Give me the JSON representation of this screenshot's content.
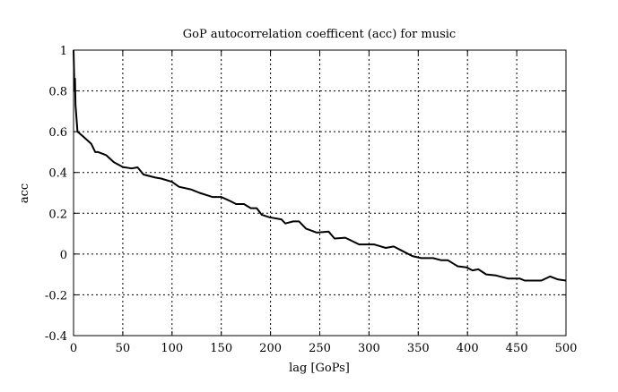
{
  "chart_data": {
    "type": "line",
    "title": "GoP autocorrelation coefficent (acc) for music",
    "xlabel": "lag [GoPs]",
    "ylabel": "acc",
    "xlim": [
      0,
      500
    ],
    "ylim": [
      -0.4,
      1
    ],
    "xticks": [
      0,
      50,
      100,
      150,
      200,
      250,
      300,
      350,
      400,
      450,
      500
    ],
    "yticks": [
      -0.4,
      -0.2,
      0,
      0.2,
      0.4,
      0.6,
      0.8,
      1
    ],
    "ytick_labels": [
      "-0.4",
      "-0.2",
      "0",
      "0.2",
      "0.4",
      "0.6",
      "0.8",
      "1"
    ],
    "grid": true,
    "grid_style": "dotted",
    "line_color": "#000000",
    "series": [
      {
        "x": [
          0,
          1,
          1.5,
          2,
          4,
          10,
          18,
          22,
          25,
          33,
          41,
          50,
          59,
          65,
          71,
          83,
          89,
          100,
          107,
          119,
          128,
          141,
          150,
          159,
          165,
          173,
          180,
          186,
          191,
          199,
          211,
          215,
          223,
          229,
          236,
          247,
          259,
          265,
          276,
          290,
          305,
          317,
          325,
          332,
          344,
          353,
          365,
          373,
          380,
          390,
          399,
          405,
          411,
          419,
          429,
          441,
          453,
          458,
          475,
          484,
          492,
          500
        ],
        "y": [
          1.0,
          0.8,
          0.86,
          0.73,
          0.6,
          0.575,
          0.54,
          0.5,
          0.5,
          0.485,
          0.45,
          0.427,
          0.42,
          0.425,
          0.39,
          0.375,
          0.37,
          0.354,
          0.33,
          0.317,
          0.3,
          0.28,
          0.28,
          0.26,
          0.245,
          0.245,
          0.225,
          0.225,
          0.193,
          0.18,
          0.17,
          0.15,
          0.16,
          0.16,
          0.125,
          0.105,
          0.11,
          0.076,
          0.08,
          0.047,
          0.047,
          0.03,
          0.037,
          0.02,
          -0.01,
          -0.02,
          -0.02,
          -0.03,
          -0.03,
          -0.06,
          -0.065,
          -0.08,
          -0.075,
          -0.1,
          -0.105,
          -0.12,
          -0.12,
          -0.13,
          -0.13,
          -0.11,
          -0.125,
          -0.13
        ]
      }
    ]
  }
}
